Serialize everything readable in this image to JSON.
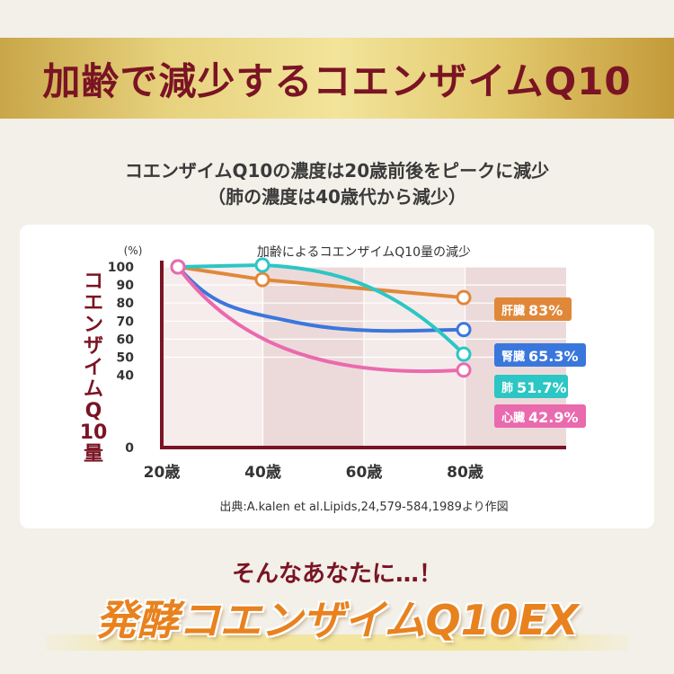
{
  "banner": {
    "title": "加齢で減少するコエンザイムQ10"
  },
  "subtitle": {
    "line1": "コエンザイムQ10の濃度は20歳前後をピークに減少",
    "line2": "（肺の濃度は40歳代から減少）"
  },
  "chart_data": {
    "type": "line",
    "title": "加齢によるコエンザイムQ10量の減少",
    "ylabel": "コエンザイムQ10量",
    "yunit": "(%)",
    "ylim": [
      0,
      100
    ],
    "yticks": [
      "100",
      "90",
      "80",
      "70",
      "60",
      "50",
      "40",
      "0"
    ],
    "x": [
      20,
      40,
      80
    ],
    "xticklabels": [
      "20歳",
      "40歳",
      "60歳",
      "80歳"
    ],
    "grid": true,
    "source": "出典:A.kalen et al.Lipids,24,579-584,1989より作図",
    "series": [
      {
        "name": "肝臓",
        "label": "83%",
        "color": "#e0883a",
        "values": [
          100,
          93,
          83
        ]
      },
      {
        "name": "腎臓",
        "label": "65.3%",
        "color": "#3a77dc",
        "values": [
          100,
          76,
          65.3
        ]
      },
      {
        "name": "肺",
        "label": "51.7%",
        "color": "#2cc6c4",
        "values": [
          100,
          101,
          51.7
        ]
      },
      {
        "name": "心臓",
        "label": "42.9%",
        "color": "#ea6aae",
        "values": [
          100,
          64,
          42.9
        ]
      }
    ]
  },
  "tagline": "そんなあなたに…！",
  "product": "発酵コエンザイムQ10EX",
  "colors": {
    "accent": "#7a1424",
    "gold": "#d8bb5c",
    "orange": "#e8821e"
  }
}
